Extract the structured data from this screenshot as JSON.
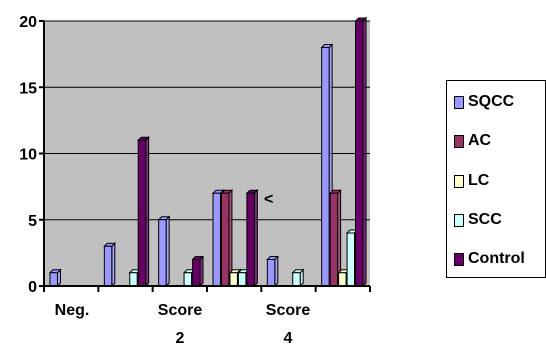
{
  "chart_data": {
    "type": "bar",
    "x_tick_labels": [
      {
        "line1": "Neg.",
        "line2": ""
      },
      {
        "line1": "Score",
        "line2": "2"
      },
      {
        "line1": "Score",
        "line2": "4"
      }
    ],
    "ylim": [
      0,
      20
    ],
    "yticks": [
      0,
      5,
      10,
      15,
      20
    ],
    "groups": 6,
    "series": [
      {
        "name": "SQCC",
        "color": "#9999ff",
        "values": [
          1,
          3,
          5,
          7,
          2,
          18
        ]
      },
      {
        "name": "AC",
        "color": "#993366",
        "values": [
          0,
          0,
          0,
          7,
          0,
          7
        ]
      },
      {
        "name": "LC",
        "color": "#ffffcc",
        "values": [
          0,
          0,
          0,
          1,
          0,
          1
        ]
      },
      {
        "name": "SCC",
        "color": "#ccffff",
        "values": [
          0,
          1,
          1,
          1,
          1,
          4
        ]
      },
      {
        "name": "Control",
        "color": "#660066",
        "values": [
          0,
          11,
          2,
          7,
          0,
          20
        ]
      }
    ],
    "annotation": "<",
    "plot_background": "#c0c0c0",
    "grid": true,
    "legend_position": "right"
  }
}
